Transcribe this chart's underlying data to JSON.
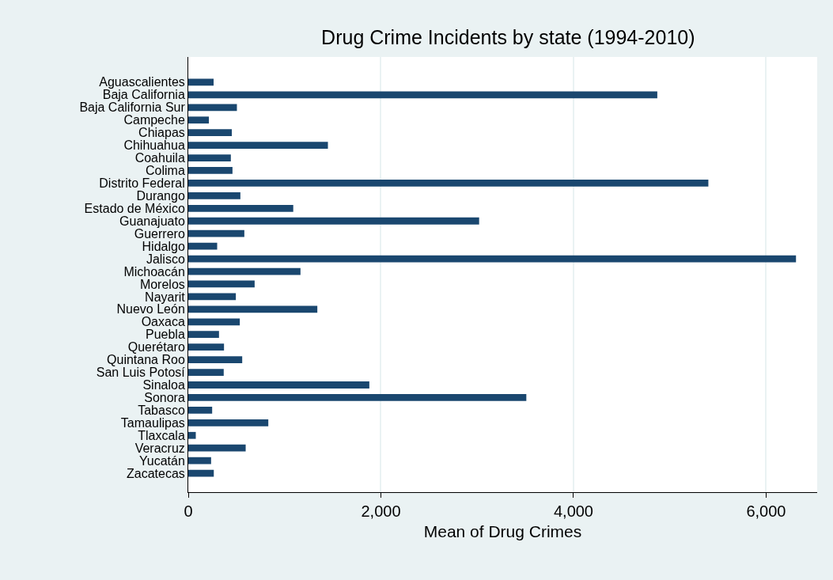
{
  "chart_data": {
    "type": "bar",
    "orientation": "horizontal",
    "title": "Drug Crime Incidents by state (1994-2010)",
    "xlabel": "Mean of Drug Crimes",
    "categories": [
      "Aguascalientes",
      "Baja California",
      "Baja California Sur",
      "Campeche",
      "Chiapas",
      "Chihuahua",
      "Coahuila",
      "Colima",
      "Distrito Federal",
      "Durango",
      "Estado de México",
      "Guanajuato",
      "Guerrero",
      "Hidalgo",
      "Jalisco",
      "Michoacán",
      "Morelos",
      "Nayarit",
      "Nuevo León",
      "Oaxaca",
      "Puebla",
      "Querétaro",
      "Quintana Roo",
      "San Luis Potosí",
      "Sinaloa",
      "Sonora",
      "Tabasco",
      "Tamaulipas",
      "Tlaxcala",
      "Veracruz",
      "Yucatán",
      "Zacatecas"
    ],
    "values": [
      263,
      4870,
      505,
      214,
      452,
      1450,
      442,
      459,
      5400,
      541,
      1090,
      3020,
      582,
      300,
      6310,
      1165,
      689,
      494,
      1340,
      535,
      319,
      371,
      560,
      368,
      1880,
      3510,
      248,
      831,
      78,
      596,
      237,
      265
    ],
    "color": "#1a476f",
    "xlim": [
      0,
      6530
    ],
    "xticks": [
      0,
      {
        "value": 2000,
        "label": "2,000"
      },
      {
        "value": 4000,
        "label": "4,000"
      },
      {
        "value": 6000,
        "label": "6,000"
      }
    ],
    "grid": "x",
    "legend": false
  }
}
